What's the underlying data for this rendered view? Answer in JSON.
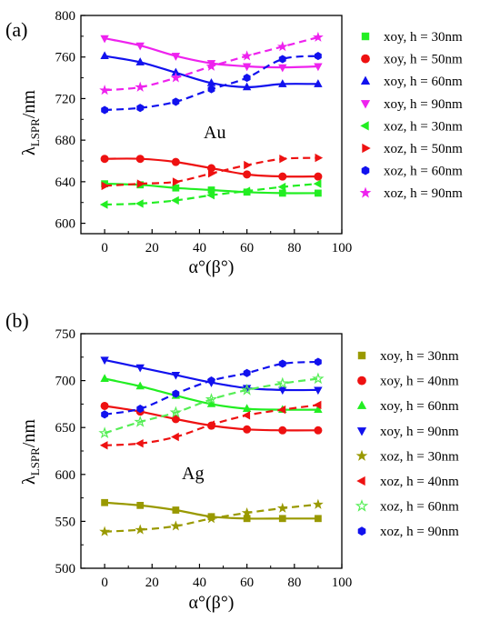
{
  "chart_data": [
    {
      "type": "line",
      "panel_label": "(a)",
      "material": "Au",
      "ylabel_main": "λ",
      "ylabel_sub": "LSPR",
      "ylabel_unit": "/nm",
      "xlabel": "α°(β°)",
      "xlim": [
        -10,
        100
      ],
      "ylim": [
        590,
        800
      ],
      "xticks": [
        0,
        20,
        40,
        60,
        80,
        100
      ],
      "yticks": [
        600,
        640,
        680,
        720,
        760,
        800
      ],
      "legend_position": "right",
      "grid": false,
      "series": [
        {
          "name": "xoy, h = 30nm",
          "marker": "square",
          "color": "#22ee22",
          "dashed": false,
          "x": [
            0,
            15,
            30,
            45,
            60,
            75,
            90
          ],
          "y": [
            638,
            637,
            634,
            632,
            630,
            629,
            629
          ]
        },
        {
          "name": "xoy, h = 50nm",
          "marker": "circle",
          "color": "#ee1111",
          "dashed": false,
          "x": [
            0,
            15,
            30,
            45,
            60,
            75,
            90
          ],
          "y": [
            662,
            662,
            659,
            653,
            647,
            645,
            645
          ]
        },
        {
          "name": "xoy, h = 60nm",
          "marker": "triangle-up",
          "color": "#1111ee",
          "dashed": false,
          "x": [
            0,
            15,
            30,
            45,
            60,
            75,
            90
          ],
          "y": [
            761,
            755,
            745,
            735,
            731,
            734,
            734
          ]
        },
        {
          "name": "xoy, h = 90nm",
          "marker": "triangle-down",
          "color": "#ee22ee",
          "dashed": false,
          "x": [
            0,
            15,
            30,
            45,
            60,
            75,
            90
          ],
          "y": [
            778,
            771,
            761,
            754,
            751,
            750,
            751
          ]
        },
        {
          "name": "xoz, h = 30nm",
          "marker": "triangle-left",
          "color": "#22ee22",
          "dashed": true,
          "x": [
            0,
            15,
            30,
            45,
            60,
            75,
            90
          ],
          "y": [
            618,
            619,
            622,
            627,
            631,
            635,
            638
          ]
        },
        {
          "name": "xoz, h = 50nm",
          "marker": "triangle-right",
          "color": "#ee1111",
          "dashed": true,
          "x": [
            0,
            15,
            30,
            45,
            60,
            75,
            90
          ],
          "y": [
            636,
            638,
            640,
            648,
            656,
            662,
            663
          ]
        },
        {
          "name": "xoz, h = 60nm",
          "marker": "hexagon",
          "color": "#1111ee",
          "dashed": true,
          "x": [
            0,
            15,
            30,
            45,
            60,
            75,
            90
          ],
          "y": [
            709,
            711,
            717,
            729,
            740,
            758,
            761
          ]
        },
        {
          "name": "xoz, h = 90nm",
          "marker": "star",
          "color": "#ee22ee",
          "dashed": true,
          "x": [
            0,
            15,
            30,
            45,
            60,
            75,
            90
          ],
          "y": [
            728,
            731,
            740,
            751,
            761,
            770,
            779
          ]
        }
      ]
    },
    {
      "type": "line",
      "panel_label": "(b)",
      "material": "Ag",
      "ylabel_main": "λ",
      "ylabel_sub": "LSPR",
      "ylabel_unit": "/nm",
      "xlabel": "α°(β°)",
      "xlim": [
        -10,
        100
      ],
      "ylim": [
        500,
        750
      ],
      "xticks": [
        0,
        20,
        40,
        60,
        80,
        100
      ],
      "yticks": [
        500,
        550,
        600,
        650,
        700,
        750
      ],
      "legend_position": "right",
      "grid": false,
      "series": [
        {
          "name": "xoy, h = 30nm",
          "marker": "square",
          "color": "#999900",
          "dashed": false,
          "x": [
            0,
            15,
            30,
            45,
            60,
            75,
            90
          ],
          "y": [
            570,
            567,
            562,
            555,
            553,
            553,
            553
          ]
        },
        {
          "name": "xoy, h = 40nm",
          "marker": "circle",
          "color": "#ee1111",
          "dashed": false,
          "x": [
            0,
            15,
            30,
            45,
            60,
            75,
            90
          ],
          "y": [
            673,
            667,
            659,
            652,
            648,
            647,
            647
          ]
        },
        {
          "name": "xoy, h = 60nm",
          "marker": "triangle-up",
          "color": "#22ee22",
          "dashed": false,
          "x": [
            0,
            15,
            30,
            45,
            60,
            75,
            90
          ],
          "y": [
            702,
            694,
            684,
            675,
            670,
            669,
            669
          ]
        },
        {
          "name": "xoy, h = 90nm",
          "marker": "triangle-down",
          "color": "#1111ee",
          "dashed": false,
          "x": [
            0,
            15,
            30,
            45,
            60,
            75,
            90
          ],
          "y": [
            722,
            714,
            706,
            698,
            692,
            690,
            690
          ]
        },
        {
          "name": "xoz, h = 30nm",
          "marker": "star",
          "color": "#999900",
          "dashed": true,
          "x": [
            0,
            15,
            30,
            45,
            60,
            75,
            90
          ],
          "y": [
            539,
            541,
            545,
            553,
            559,
            564,
            568
          ]
        },
        {
          "name": "xoz, h = 40nm",
          "marker": "triangle-left",
          "color": "#ee1111",
          "dashed": true,
          "x": [
            0,
            15,
            30,
            45,
            60,
            75,
            90
          ],
          "y": [
            631,
            633,
            640,
            653,
            663,
            669,
            674
          ]
        },
        {
          "name": "xoz, h = 60nm",
          "marker": "star-open",
          "color": "#55ee55",
          "dashed": true,
          "x": [
            0,
            15,
            30,
            45,
            60,
            75,
            90
          ],
          "y": [
            644,
            656,
            666,
            680,
            690,
            697,
            702
          ]
        },
        {
          "name": "xoz, h = 90nm",
          "marker": "hexagon",
          "color": "#1111ee",
          "dashed": true,
          "x": [
            0,
            15,
            30,
            45,
            60,
            75,
            90
          ],
          "y": [
            664,
            670,
            686,
            700,
            708,
            718,
            720
          ]
        }
      ]
    }
  ]
}
